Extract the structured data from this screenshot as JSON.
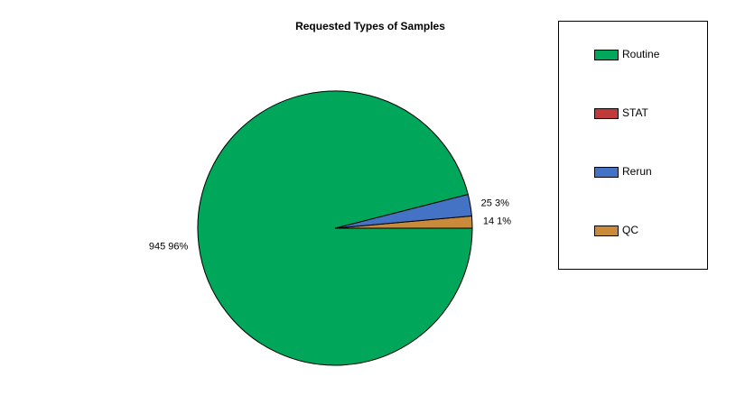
{
  "chart_data": {
    "type": "pie",
    "title": "Requested Types of Samples",
    "categories": [
      "Routine",
      "STAT",
      "Rerun",
      "QC"
    ],
    "values": [
      945,
      0,
      25,
      14
    ],
    "value_labels": [
      "945  96%",
      null,
      "25  3%",
      "14  1%"
    ],
    "colors": [
      "#00a65a",
      "#c0393b",
      "#4472c4",
      "#c98b3a"
    ],
    "legend": "right"
  }
}
